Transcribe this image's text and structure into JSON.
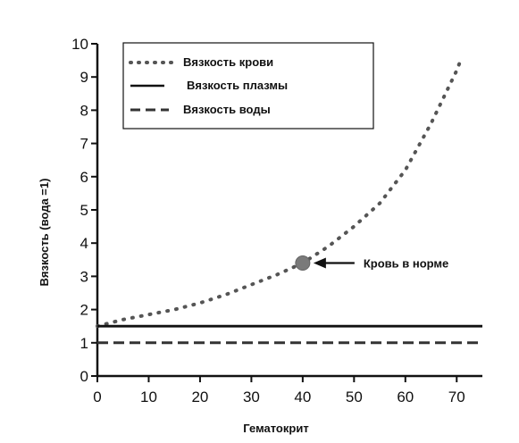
{
  "colors": {
    "axis": "#111111",
    "blood_series": "#555555",
    "plasma_series": "#111111",
    "water_series": "#333333",
    "marker": "#7a7a7a"
  },
  "chart_data": {
    "type": "line",
    "xlabel": "Гематокрит",
    "ylabel": "Вязкость (вода =1)",
    "xlim": [
      0,
      75
    ],
    "ylim": [
      0,
      10
    ],
    "x_ticks": [
      0,
      10,
      20,
      30,
      40,
      50,
      60,
      70
    ],
    "y_ticks": [
      0,
      1,
      2,
      3,
      4,
      5,
      6,
      7,
      8,
      9,
      10
    ],
    "grid": false,
    "legend_position": "top-left",
    "series": [
      {
        "name": "Вязкость крови",
        "style": "dotted",
        "x": [
          0,
          5,
          10,
          15,
          20,
          25,
          30,
          35,
          40,
          45,
          50,
          55,
          60,
          65,
          70,
          71
        ],
        "y": [
          1.5,
          1.7,
          1.85,
          2.0,
          2.2,
          2.45,
          2.75,
          3.05,
          3.4,
          3.9,
          4.5,
          5.2,
          6.2,
          7.6,
          9.2,
          9.6
        ]
      },
      {
        "name": "Вязкость плазмы",
        "style": "solid",
        "x": [
          0,
          75
        ],
        "y": [
          1.5,
          1.5
        ]
      },
      {
        "name": "Вязкость воды",
        "style": "dashed",
        "x": [
          0,
          75
        ],
        "y": [
          1.0,
          1.0
        ]
      }
    ],
    "annotations": [
      {
        "text": "Кровь  в  норме",
        "x": 40,
        "y": 3.4
      }
    ]
  }
}
